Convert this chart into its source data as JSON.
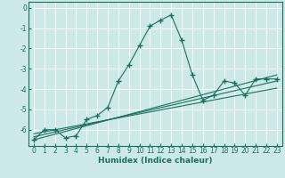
{
  "xlabel": "Humidex (Indice chaleur)",
  "xlim": [
    -0.5,
    23.5
  ],
  "ylim": [
    -6.8,
    0.3
  ],
  "bg_color": "#cde8e8",
  "grid_color": "#ffffff",
  "line_color": "#1a7060",
  "series_main": {
    "x": [
      0,
      1,
      2,
      3,
      4,
      5,
      6,
      7,
      8,
      9,
      10,
      11,
      12,
      13,
      14,
      15,
      16,
      17,
      18,
      19,
      20,
      21,
      22,
      23
    ],
    "y": [
      -6.5,
      -6.0,
      -6.0,
      -6.4,
      -6.3,
      -5.5,
      -5.3,
      -4.9,
      -3.6,
      -2.8,
      -1.85,
      -0.9,
      -0.6,
      -0.35,
      -1.6,
      -3.3,
      -4.55,
      -4.3,
      -3.6,
      -3.7,
      -4.3,
      -3.5,
      -3.5,
      -3.5
    ],
    "marker": "+",
    "markersize": 4,
    "linewidth": 1.0
  },
  "series_lines": [
    {
      "x": [
        0,
        23
      ],
      "y": [
        -6.5,
        -3.3
      ]
    },
    {
      "x": [
        0,
        23
      ],
      "y": [
        -6.35,
        -3.6
      ]
    },
    {
      "x": [
        0,
        23
      ],
      "y": [
        -6.2,
        -3.95
      ]
    }
  ],
  "xticks": [
    0,
    1,
    2,
    3,
    4,
    5,
    6,
    7,
    8,
    9,
    10,
    11,
    12,
    13,
    14,
    15,
    16,
    17,
    18,
    19,
    20,
    21,
    22,
    23
  ],
  "yticks": [
    0,
    -1,
    -2,
    -3,
    -4,
    -5,
    -6
  ],
  "tick_fontsize": 5.5,
  "label_fontsize": 6.5
}
